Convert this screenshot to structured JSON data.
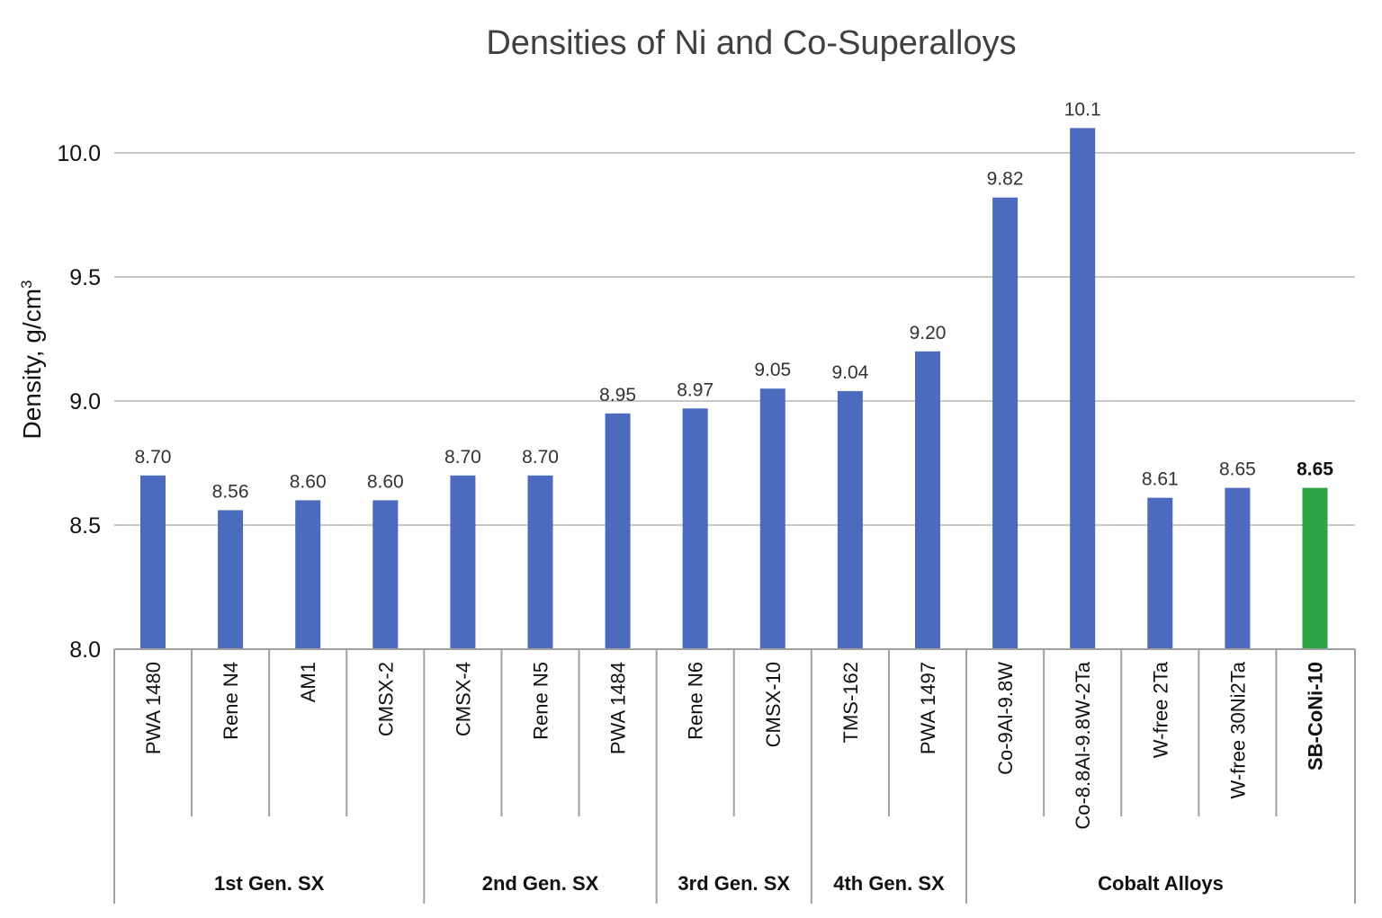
{
  "chart_data": {
    "type": "bar",
    "title": "Densities of Ni and Co-Superalloys",
    "ylabel_main": "Density, g/cm",
    "ylabel_sup": "3",
    "xlabel": "",
    "ylim": [
      8.0,
      10.2
    ],
    "yticks": [
      "8.0",
      "8.5",
      "9.0",
      "9.5",
      "10.0"
    ],
    "grid": true,
    "categories": [
      "PWA 1480",
      "Rene N4",
      "AM1",
      "CMSX-2",
      "CMSX-4",
      "Rene N5",
      "PWA 1484",
      "Rene N6",
      "CMSX-10",
      "TMS-162",
      "PWA 1497",
      "Co-9Al-9.8W",
      "Co-8.8Al-9.8W-2Ta",
      "W-free 2Ta",
      "W-free 30Ni2Ta",
      "SB-CoNi-10"
    ],
    "values": [
      8.7,
      8.56,
      8.6,
      8.6,
      8.7,
      8.7,
      8.95,
      8.97,
      9.05,
      9.04,
      9.2,
      9.82,
      10.1,
      8.61,
      8.65,
      8.65
    ],
    "value_labels": [
      "8.70",
      "8.56",
      "8.60",
      "8.60",
      "8.70",
      "8.70",
      "8.95",
      "8.97",
      "9.05",
      "9.04",
      "9.20",
      "9.82",
      "10.1",
      "8.61",
      "8.65",
      "8.65"
    ],
    "highlight_index": 15,
    "groups": [
      {
        "label": "1st Gen. SX",
        "start": 0,
        "end": 3
      },
      {
        "label": "2nd Gen. SX",
        "start": 4,
        "end": 6
      },
      {
        "label": "3rd Gen. SX",
        "start": 7,
        "end": 8
      },
      {
        "label": "4th Gen. SX",
        "start": 9,
        "end": 10
      },
      {
        "label": "Cobalt Alloys",
        "start": 11,
        "end": 15
      }
    ],
    "colors": {
      "bar": "#4c6bbf",
      "highlight": "#2ca444",
      "grid": "#c8c8c8",
      "axis": "#a0a0a0"
    }
  }
}
